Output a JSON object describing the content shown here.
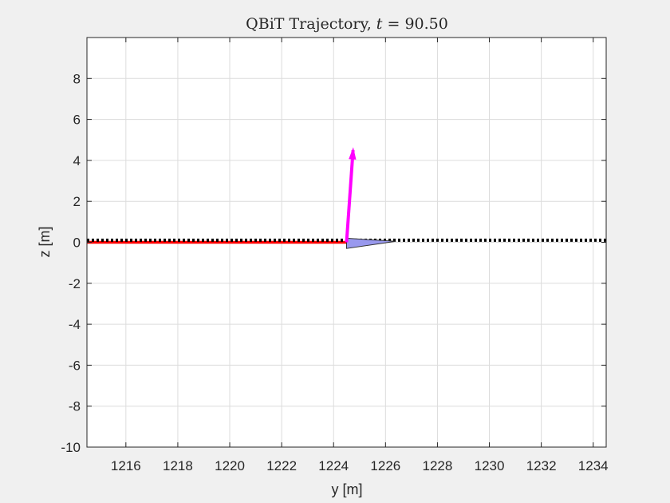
{
  "chart_data": {
    "type": "line",
    "title": "QBiT Trajectory, t = 90.50",
    "title_parts": {
      "prefix": "QBiT Trajectory, ",
      "var": "t",
      "eq": " = ",
      "value": "90.50"
    },
    "xlabel": "y [m]",
    "ylabel": "z [m]",
    "xlim": [
      1214.5,
      1234.5
    ],
    "ylim": [
      -10,
      10
    ],
    "xticks": [
      "1216",
      "1218",
      "1220",
      "1222",
      "1224",
      "1226",
      "1228",
      "1230",
      "1232",
      "1234"
    ],
    "yticks": [
      "-10",
      "-8",
      "-6",
      "-4",
      "-2",
      "0",
      "2",
      "4",
      "6",
      "8"
    ],
    "grid": true,
    "series": [
      {
        "kind": "traveled-path",
        "color": "#ff0000",
        "x": [
          1214.5,
          1224.5
        ],
        "y": [
          0,
          0
        ]
      },
      {
        "kind": "reference-path",
        "color": "#000000",
        "style": "dotted",
        "x": [
          1214.5,
          1234.5
        ],
        "y": [
          0.1,
          0.1
        ]
      }
    ],
    "vehicle": {
      "color": "#9999ee",
      "outline": "#333333",
      "points": [
        [
          1224.5,
          0.2
        ],
        [
          1224.5,
          -0.3
        ],
        [
          1226.4,
          0.05
        ]
      ]
    },
    "thrust_vector": {
      "color": "#ff00ff",
      "from": [
        1224.5,
        0.0
      ],
      "to": [
        1224.75,
        4.5
      ]
    }
  }
}
